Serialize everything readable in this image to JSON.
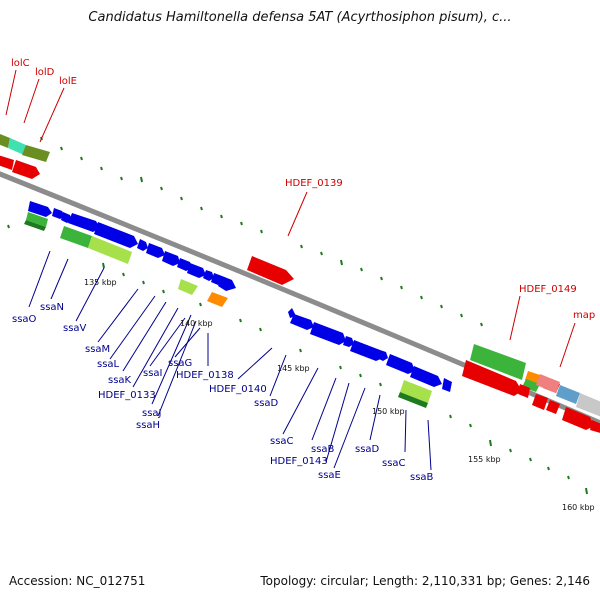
{
  "title": "Candidatus Hamiltonella defensa 5AT (Acyrthosiphon pisum), c...",
  "footer": {
    "accession": "Accession: NC_012751",
    "summary": "Topology: circular; Length: 2,110,331 bp; Genes: 2,146"
  },
  "colors": {
    "backbone": "#8c8c8c",
    "tick": "#1e7a1e",
    "red_label": "#cc0000",
    "blue_label": "#00008b",
    "blue": "#0000e6",
    "red": "#e60000",
    "olive": "#6b8e23",
    "teal": "#40e0b0",
    "green": "#3cb43c",
    "lime": "#a6e04a",
    "orange": "#ff8c00",
    "pink": "#f08080",
    "steel": "#5f9ec8",
    "silver": "#c8c8c8"
  },
  "kbp_labels": [
    "135 kbp",
    "140 kbp",
    "145 kbp",
    "150 kbp",
    "155 kbp",
    "160 kbp"
  ],
  "red_labels": [
    "lolC",
    "lolD",
    "lolE",
    "HDEF_0139",
    "HDEF_0149",
    "map"
  ],
  "blue_labels": [
    "ssaO",
    "ssaN",
    "ssaV",
    "ssaM",
    "ssaL",
    "ssaK",
    "HDEF_0133",
    "ssaI",
    "ssaJ",
    "ssaH",
    "ssaG",
    "HDEF_0138",
    "HDEF_0140",
    "ssaD",
    "ssaC",
    "ssaB",
    "HDEF_0143",
    "ssaE",
    "ssaD",
    "ssaC",
    "ssaB"
  ]
}
